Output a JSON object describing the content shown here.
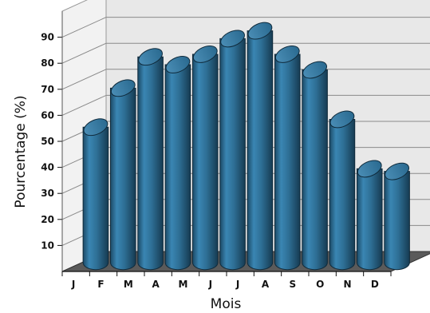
{
  "chart_data": {
    "type": "bar",
    "categories": [
      "J",
      "F",
      "M",
      "A",
      "M",
      "J",
      "J",
      "A",
      "S",
      "O",
      "N",
      "D"
    ],
    "values": [
      52,
      67,
      79,
      76,
      80,
      86,
      89,
      80,
      74,
      55,
      36,
      35
    ],
    "xlabel": "Mois",
    "ylabel": "Pourcentage (%)",
    "yticks": [
      10,
      20,
      30,
      40,
      50,
      60,
      70,
      80,
      90
    ],
    "ylim": [
      0,
      100
    ],
    "grid": true,
    "style": "3d-cylinder",
    "colors": {
      "bar_front": "#2f6d91",
      "bar_side": "#1b4560",
      "bar_top": "#5b9cc4",
      "wall": "#e8e8e8",
      "floor": "#5a5a5a",
      "grid": "#8a8a8a"
    }
  }
}
